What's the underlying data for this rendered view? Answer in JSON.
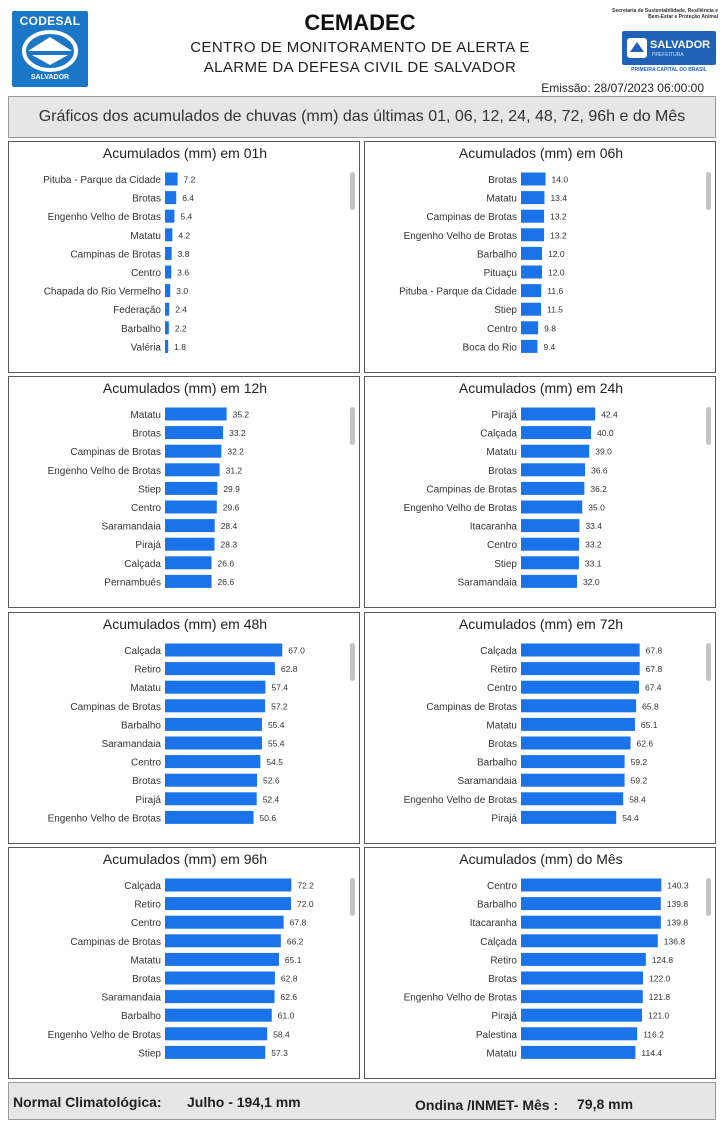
{
  "header": {
    "logo_left_text": "CODESAL",
    "logo_left_sub": "SALVADOR",
    "title": "CEMADEC",
    "subtitle_line1": "CENTRO DE MONITORAMENTO DE ALERTA  E",
    "subtitle_line2": "ALARME DA DEFESA CIVIL DE SALVADOR",
    "secretaria_text": "Secretaria de Sustentabilidade, Resiliência e Bem-Estar e Proteção Animal",
    "logo_right_text": "SALVADOR",
    "logo_right_sub": "PREFEITURA",
    "logo_right_caption": "PRIMEIRA CAPITAL DO BRASIL",
    "emissao": "Emissão: 28/07/2023 06:00:00"
  },
  "banner": {
    "text": "Gráficos dos acumulados de chuvas (mm) das últimas 01, 06, 12, 24, 48, 72, 96h e do Mês"
  },
  "colors": {
    "bar": "#1a73e8",
    "panel_border": "#5a5a5a",
    "banner_bg": "#e6e6e6"
  },
  "chart_data": [
    {
      "type": "bar",
      "orientation": "horizontal",
      "title": "Acumulados (mm) em 01h",
      "categories": [
        "Pituba - Parque da Cidade",
        "Brotas",
        "Engenho Velho de Brotas",
        "Matatu",
        "Campinas de Brotas",
        "Centro",
        "Chapada do Rio Vermelho",
        "Federação",
        "Barbalho",
        "Valéria"
      ],
      "values": [
        7.2,
        6.4,
        5.4,
        4.2,
        3.8,
        3.6,
        3.0,
        2.4,
        2.2,
        1.8
      ],
      "labels": [
        "7.2",
        "6.4",
        "5.4",
        "4.2",
        "3.8",
        "3.6",
        "3.0",
        "2.4",
        "2.2",
        "1.8"
      ],
      "xlim": [
        0,
        100
      ]
    },
    {
      "type": "bar",
      "orientation": "horizontal",
      "title": "Acumulados (mm) em 06h",
      "categories": [
        "Brotas",
        "Matatu",
        "Campinas de Brotas",
        "Engenho Velho de Brotas",
        "Barbalho",
        "Pituaçu",
        "Pituba - Parque da Cidade",
        "Stiep",
        "Centro",
        "Boca do Rio"
      ],
      "values": [
        14.0,
        13.4,
        13.2,
        13.2,
        12.0,
        12.0,
        11.6,
        11.5,
        9.8,
        9.4
      ],
      "labels": [
        "14.0",
        "13.4",
        "13.2",
        "13.2",
        "12.0",
        "12.0",
        "11.6",
        "11.5",
        "9.8",
        "9.4"
      ],
      "xlim": [
        0,
        100
      ]
    },
    {
      "type": "bar",
      "orientation": "horizontal",
      "title": "Acumulados (mm) em 12h",
      "categories": [
        "Matatu",
        "Brotas",
        "Campinas de Brotas",
        "Engenho Velho de Brotas",
        "Stiep",
        "Centro",
        "Saramandaia",
        "Pirajá",
        "Calçada",
        "Pernambués"
      ],
      "values": [
        35.2,
        33.2,
        32.2,
        31.2,
        29.9,
        29.6,
        28.4,
        28.3,
        26.6,
        26.6
      ],
      "labels": [
        "35.2",
        "33.2",
        "32.2",
        "31.2",
        "29.9",
        "29.6",
        "28.4",
        "28.3",
        "26.6",
        "26.6"
      ],
      "xlim": [
        0,
        100
      ]
    },
    {
      "type": "bar",
      "orientation": "horizontal",
      "title": "Acumulados (mm) em 24h",
      "categories": [
        "Pirajá",
        "Calçada",
        "Matatu",
        "Brotas",
        "Campinas de Brotas",
        "Engenho Velho de Brotas",
        "Itacaranha",
        "Centro",
        "Stiep",
        "Saramandaia"
      ],
      "values": [
        42.4,
        40.0,
        39.0,
        36.6,
        36.2,
        35.0,
        33.4,
        33.2,
        33.1,
        32.0
      ],
      "labels": [
        "42.4",
        "40.0",
        "39.0",
        "36.6",
        "36.2",
        "35.0",
        "33.4",
        "33.2",
        "33.1",
        "32.0"
      ],
      "xlim": [
        0,
        100
      ]
    },
    {
      "type": "bar",
      "orientation": "horizontal",
      "title": "Acumulados (mm) em 48h",
      "categories": [
        "Calçada",
        "Retiro",
        "Matatu",
        "Campinas de Brotas",
        "Barbalho",
        "Saramandaia",
        "Centro",
        "Brotas",
        "Pirajá",
        "Engenho Velho de Brotas"
      ],
      "values": [
        67.0,
        62.8,
        57.4,
        57.2,
        55.4,
        55.4,
        54.5,
        52.6,
        52.4,
        50.6
      ],
      "labels": [
        "67.0",
        "62.8",
        "57.4",
        "57.2",
        "55.4",
        "55.4",
        "54.5",
        "52.6",
        "52.4",
        "50.6"
      ],
      "xlim": [
        0,
        100
      ]
    },
    {
      "type": "bar",
      "orientation": "horizontal",
      "title": "Acumulados (mm) em 72h",
      "categories": [
        "Calçada",
        "Retiro",
        "Centro",
        "Campinas de Brotas",
        "Matatu",
        "Brotas",
        "Barbalho",
        "Saramandaia",
        "Engenho Velho de Brotas",
        "Pirajá"
      ],
      "values": [
        67.8,
        67.8,
        67.4,
        65.8,
        65.1,
        62.6,
        59.2,
        59.2,
        58.4,
        54.4
      ],
      "labels": [
        "67.8",
        "67.8",
        "67.4",
        "65.8",
        "65.1",
        "62.6",
        "59.2",
        "59.2",
        "58.4",
        "54.4"
      ],
      "xlim": [
        0,
        100
      ]
    },
    {
      "type": "bar",
      "orientation": "horizontal",
      "title": "Acumulados (mm) em 96h",
      "categories": [
        "Calçada",
        "Retiro",
        "Centro",
        "Campinas de Brotas",
        "Matatu",
        "Brotas",
        "Saramandaia",
        "Barbalho",
        "Engenho Velho de Brotas",
        "Stiep"
      ],
      "values": [
        72.2,
        72.0,
        67.8,
        66.2,
        65.1,
        62.8,
        62.6,
        61.0,
        58.4,
        57.3
      ],
      "labels": [
        "72.2",
        "72.0",
        "67.8",
        "66.2",
        "65.1",
        "62.8",
        "62.6",
        "61.0",
        "58.4",
        "57.3"
      ],
      "xlim": [
        0,
        100
      ]
    },
    {
      "type": "bar",
      "orientation": "horizontal",
      "title": "Acumulados (mm) do Mês",
      "categories": [
        "Centro",
        "Barbalho",
        "Itacaranha",
        "Calçada",
        "Retiro",
        "Brotas",
        "Engenho Velho de Brotas",
        "Pirajá",
        "Palestina",
        "Matatu"
      ],
      "values": [
        140.3,
        139.8,
        139.8,
        136.8,
        124.8,
        122.0,
        121.8,
        121.0,
        116.2,
        114.4
      ],
      "labels": [
        "140.3",
        "139.8",
        "139.8",
        "136.8",
        "124.8",
        "122.0",
        "121.8",
        "121.0",
        "116.2",
        "114.4"
      ],
      "xlim": [
        0,
        175
      ]
    }
  ],
  "footer": {
    "normal_label": "Normal Climatológica:",
    "normal_value": "Julho - 194,1 mm",
    "ondina_label": "Ondina /INMET- Mês :",
    "ondina_value": "79,8 mm"
  }
}
